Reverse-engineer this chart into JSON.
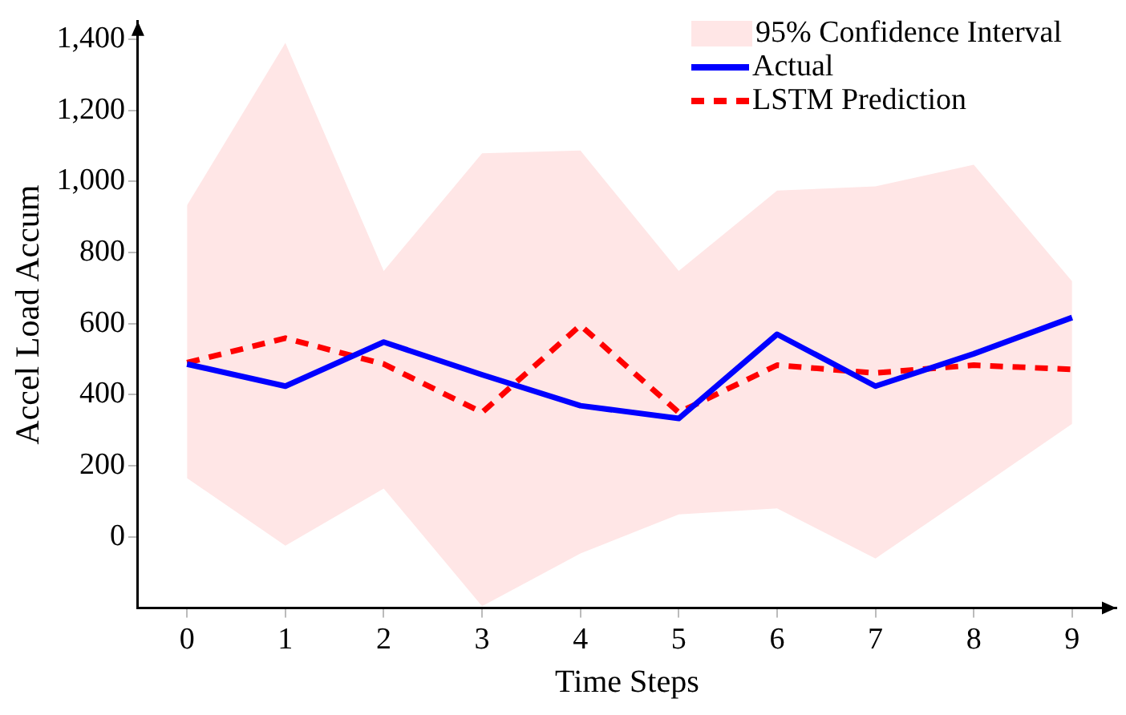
{
  "chart_data": {
    "type": "line",
    "xlabel": "Time Steps",
    "ylabel": "Accel Load Accum",
    "x": [
      0,
      1,
      2,
      3,
      4,
      5,
      6,
      7,
      8,
      9
    ],
    "xlim": [
      -0.5,
      9.45
    ],
    "xticks": [
      0,
      1,
      2,
      3,
      4,
      5,
      6,
      7,
      8,
      9
    ],
    "ylim": [
      -200,
      1450
    ],
    "yticks": [
      0,
      200,
      400,
      600,
      800,
      {
        "value": 1000,
        "label": "1,000"
      },
      {
        "value": 1200,
        "label": "1,200"
      },
      {
        "value": 1400,
        "label": "1,400"
      }
    ],
    "grid": false,
    "legend": "top right",
    "annotations": [
      "95% Confidence Interval"
    ],
    "series": [
      {
        "name": "Actual",
        "color": "#0000ff",
        "line_style": "solid",
        "values": [
          486,
          424,
          548,
          456,
          369,
          333,
          570,
          424,
          515,
          617
        ]
      },
      {
        "name": "LSTM Prediction",
        "color": "#ff0000",
        "line_style": "dashed",
        "values": [
          490,
          559,
          486,
          350,
          595,
          350,
          483,
          461,
          483,
          471
        ],
        "lower": [
          165,
          -25,
          136,
          -195,
          -47,
          63,
          80,
          -61,
          128,
          318
        ],
        "upper": [
          933,
          1390,
          748,
          1079,
          1087,
          748,
          974,
          986,
          1047,
          719
        ]
      }
    ]
  }
}
